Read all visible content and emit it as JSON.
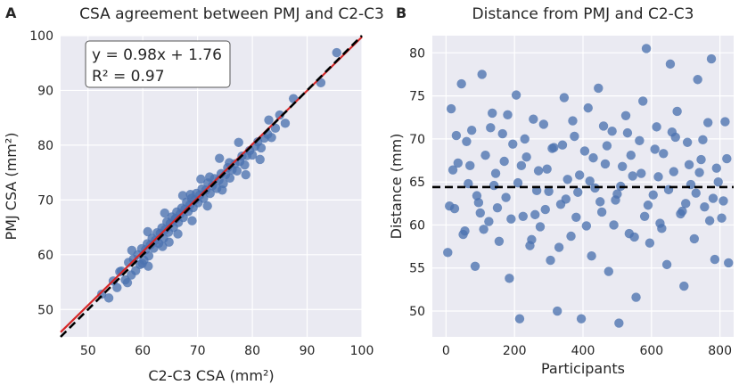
{
  "colors": {
    "plot_bg": "#EAEAF2",
    "grid": "#FFFFFF",
    "points": "#4C72B0",
    "fit_line": "#D62728",
    "identity_line": "#000000",
    "annotation_text": "#C8102E"
  },
  "chart_data": [
    {
      "panel_label": "A",
      "type": "scatter",
      "title": "CSA agreement between PMJ and C2-C3",
      "xlabel": "C2-C3 CSA (mm²)",
      "ylabel": "PMJ CSA (mm²)",
      "xlim": [
        45,
        100
      ],
      "ylim": [
        45,
        100
      ],
      "xticks": [
        50,
        60,
        70,
        80,
        90,
        100
      ],
      "yticks": [
        50,
        60,
        70,
        80,
        90,
        100
      ],
      "grid": true,
      "fit": {
        "slope": 0.98,
        "intercept": 1.76,
        "label": "y = 0.98x + 1.76"
      },
      "r2_label": "R² = 0.97",
      "identity_line": {
        "style": "dashed",
        "slope": 1,
        "intercept": 0
      },
      "series": [
        {
          "name": "participants",
          "points": [
            [
              52.5,
              52.8
            ],
            [
              53.8,
              52.1
            ],
            [
              54.6,
              55.2
            ],
            [
              55.3,
              54.0
            ],
            [
              56.1,
              57.0
            ],
            [
              56.8,
              55.4
            ],
            [
              57.4,
              58.6
            ],
            [
              57.9,
              56.3
            ],
            [
              58.3,
              59.2
            ],
            [
              58.7,
              57.1
            ],
            [
              59.1,
              60.0
            ],
            [
              59.5,
              58.2
            ],
            [
              59.8,
              61.1
            ],
            [
              60.2,
              59.0
            ],
            [
              60.5,
              60.9
            ],
            [
              60.8,
              62.0
            ],
            [
              61.1,
              59.8
            ],
            [
              61.4,
              61.8
            ],
            [
              61.7,
              63.0
            ],
            [
              62.0,
              61.2
            ],
            [
              62.3,
              62.6
            ],
            [
              62.6,
              64.0
            ],
            [
              62.9,
              62.1
            ],
            [
              63.2,
              63.9
            ],
            [
              63.5,
              64.9
            ],
            [
              63.8,
              63.0
            ],
            [
              64.1,
              64.6
            ],
            [
              64.4,
              66.0
            ],
            [
              64.7,
              64.1
            ],
            [
              65.0,
              65.7
            ],
            [
              65.3,
              66.9
            ],
            [
              65.6,
              65.0
            ],
            [
              65.9,
              66.5
            ],
            [
              66.2,
              67.8
            ],
            [
              66.5,
              65.9
            ],
            [
              66.8,
              67.4
            ],
            [
              67.1,
              68.5
            ],
            [
              67.4,
              66.8
            ],
            [
              67.7,
              68.3
            ],
            [
              68.0,
              69.6
            ],
            [
              68.3,
              67.9
            ],
            [
              68.6,
              69.1
            ],
            [
              68.9,
              70.3
            ],
            [
              69.2,
              68.6
            ],
            [
              69.5,
              70.0
            ],
            [
              69.8,
              71.2
            ],
            [
              70.1,
              69.5
            ],
            [
              70.4,
              70.9
            ],
            [
              70.8,
              72.0
            ],
            [
              71.1,
              70.3
            ],
            [
              71.5,
              71.8
            ],
            [
              71.9,
              73.1
            ],
            [
              72.3,
              71.2
            ],
            [
              72.7,
              72.6
            ],
            [
              73.1,
              73.9
            ],
            [
              73.5,
              72.1
            ],
            [
              73.9,
              73.6
            ],
            [
              74.3,
              74.8
            ],
            [
              74.7,
              73.0
            ],
            [
              75.1,
              74.6
            ],
            [
              75.5,
              75.9
            ],
            [
              75.9,
              74.0
            ],
            [
              76.3,
              75.5
            ],
            [
              76.8,
              76.6
            ],
            [
              77.2,
              75.3
            ],
            [
              77.7,
              77.0
            ],
            [
              78.1,
              78.0
            ],
            [
              78.6,
              76.4
            ],
            [
              79.0,
              78.1
            ],
            [
              79.5,
              79.0
            ],
            [
              80.0,
              78.2
            ],
            [
              80.5,
              79.8
            ],
            [
              81.0,
              80.6
            ],
            [
              81.6,
              79.5
            ],
            [
              82.2,
              81.3
            ],
            [
              82.8,
              82.0
            ],
            [
              83.5,
              81.4
            ],
            [
              84.2,
              83.1
            ],
            [
              85.0,
              85.5
            ],
            [
              86.0,
              84.0
            ],
            [
              87.5,
              88.5
            ],
            [
              92.5,
              91.4
            ],
            [
              95.4,
              96.9
            ],
            [
              57.2,
              54.9
            ],
            [
              61.0,
              57.9
            ],
            [
              63.6,
              61.5
            ],
            [
              66.4,
              63.8
            ],
            [
              69.0,
              66.2
            ],
            [
              71.8,
              68.9
            ],
            [
              74.5,
              71.8
            ],
            [
              78.8,
              74.6
            ],
            [
              81.4,
              77.4
            ],
            [
              58.0,
              60.8
            ],
            [
              60.9,
              64.2
            ],
            [
              64.0,
              67.6
            ],
            [
              67.3,
              70.8
            ],
            [
              70.6,
              73.8
            ],
            [
              74.0,
              77.6
            ],
            [
              77.5,
              80.5
            ],
            [
              64.8,
              62.3
            ],
            [
              68.7,
              71.0
            ],
            [
              72.2,
              74.2
            ],
            [
              55.8,
              56.9
            ],
            [
              59.9,
              58.4
            ],
            [
              66.0,
              66.6
            ],
            [
              75.8,
              76.8
            ],
            [
              83.0,
              84.6
            ]
          ]
        }
      ]
    },
    {
      "panel_label": "B",
      "type": "scatter",
      "title": "Distance from PMJ and C2-C3",
      "xlabel": "Participants",
      "ylabel": "Distance (mm)",
      "xlim": [
        -40,
        840
      ],
      "ylim": [
        47,
        82
      ],
      "xticks": [
        0,
        200,
        400,
        600,
        800
      ],
      "yticks": [
        50,
        55,
        60,
        65,
        70,
        75,
        80
      ],
      "grid": true,
      "mean_line": {
        "value": 64.4,
        "style": "dashed"
      },
      "series": [
        {
          "name": "participants",
          "points": [
            [
              5,
              56.8
            ],
            [
              15,
              73.5
            ],
            [
              25,
              61.9
            ],
            [
              35,
              67.2
            ],
            [
              45,
              76.4
            ],
            [
              55,
              59.3
            ],
            [
              65,
              64.8
            ],
            [
              75,
              71.0
            ],
            [
              85,
              55.2
            ],
            [
              95,
              62.6
            ],
            [
              105,
              77.5
            ],
            [
              115,
              68.1
            ],
            [
              125,
              60.4
            ],
            [
              135,
              73.0
            ],
            [
              145,
              66.0
            ],
            [
              155,
              58.1
            ],
            [
              165,
              70.6
            ],
            [
              175,
              63.2
            ],
            [
              185,
              53.8
            ],
            [
              195,
              69.4
            ],
            [
              205,
              75.1
            ],
            [
              215,
              49.1
            ],
            [
              225,
              61.0
            ],
            [
              235,
              67.9
            ],
            [
              245,
              57.6
            ],
            [
              255,
              72.3
            ],
            [
              265,
              64.0
            ],
            [
              275,
              59.8
            ],
            [
              285,
              71.7
            ],
            [
              295,
              66.5
            ],
            [
              305,
              55.9
            ],
            [
              315,
              69.0
            ],
            [
              325,
              50.0
            ],
            [
              335,
              62.4
            ],
            [
              345,
              74.8
            ],
            [
              355,
              65.3
            ],
            [
              365,
              58.7
            ],
            [
              375,
              70.3
            ],
            [
              385,
              63.8
            ],
            [
              395,
              49.1
            ],
            [
              405,
              68.6
            ],
            [
              415,
              73.6
            ],
            [
              425,
              56.4
            ],
            [
              435,
              64.3
            ],
            [
              445,
              75.9
            ],
            [
              455,
              61.5
            ],
            [
              465,
              67.1
            ],
            [
              475,
              54.6
            ],
            [
              485,
              70.9
            ],
            [
              495,
              62.9
            ],
            [
              505,
              48.6
            ],
            [
              515,
              66.8
            ],
            [
              525,
              72.7
            ],
            [
              535,
              59.0
            ],
            [
              545,
              65.7
            ],
            [
              555,
              51.6
            ],
            [
              565,
              69.8
            ],
            [
              575,
              74.4
            ],
            [
              585,
              80.5
            ],
            [
              595,
              57.9
            ],
            [
              605,
              63.5
            ],
            [
              615,
              71.4
            ],
            [
              625,
              60.2
            ],
            [
              635,
              68.3
            ],
            [
              645,
              55.4
            ],
            [
              655,
              78.7
            ],
            [
              665,
              66.2
            ],
            [
              675,
              73.2
            ],
            [
              685,
              61.3
            ],
            [
              695,
              52.9
            ],
            [
              705,
              69.6
            ],
            [
              715,
              64.7
            ],
            [
              725,
              58.4
            ],
            [
              735,
              76.9
            ],
            [
              745,
              67.6
            ],
            [
              755,
              62.1
            ],
            [
              765,
              71.9
            ],
            [
              775,
              79.3
            ],
            [
              785,
              56.0
            ],
            [
              795,
              65.0
            ],
            [
              805,
              60.8
            ],
            [
              815,
              72.0
            ],
            [
              825,
              55.6
            ],
            [
              10,
              62.2
            ],
            [
              30,
              70.4
            ],
            [
              50,
              58.9
            ],
            [
              70,
              66.9
            ],
            [
              90,
              63.4
            ],
            [
              110,
              59.5
            ],
            [
              130,
              71.3
            ],
            [
              150,
              62.0
            ],
            [
              170,
              67.4
            ],
            [
              190,
              60.7
            ],
            [
              210,
              64.9
            ],
            [
              230,
              70.0
            ],
            [
              250,
              58.3
            ],
            [
              270,
              66.3
            ],
            [
              290,
              61.8
            ],
            [
              310,
              68.9
            ],
            [
              330,
              57.4
            ],
            [
              350,
              63.0
            ],
            [
              370,
              72.1
            ],
            [
              390,
              65.8
            ],
            [
              410,
              59.9
            ],
            [
              430,
              67.8
            ],
            [
              450,
              62.7
            ],
            [
              470,
              69.2
            ],
            [
              490,
              60.0
            ],
            [
              510,
              64.5
            ],
            [
              530,
              70.7
            ],
            [
              550,
              58.6
            ],
            [
              570,
              66.0
            ],
            [
              590,
              62.3
            ],
            [
              610,
              68.8
            ],
            [
              630,
              59.6
            ],
            [
              650,
              64.1
            ],
            [
              670,
              70.2
            ],
            [
              690,
              61.6
            ],
            [
              710,
              67.0
            ],
            [
              730,
              63.7
            ],
            [
              750,
              69.9
            ],
            [
              770,
              60.5
            ],
            [
              790,
              66.6
            ],
            [
              810,
              62.8
            ],
            [
              20,
              66.4
            ],
            [
              60,
              69.7
            ],
            [
              100,
              61.4
            ],
            [
              140,
              64.6
            ],
            [
              180,
              72.8
            ],
            [
              220,
              66.9
            ],
            [
              260,
              61.2
            ],
            [
              300,
              63.9
            ],
            [
              340,
              69.3
            ],
            [
              380,
              60.9
            ],
            [
              420,
              65.1
            ],
            [
              460,
              71.5
            ],
            [
              500,
              63.6
            ],
            [
              540,
              68.1
            ],
            [
              580,
              61.0
            ],
            [
              620,
              65.6
            ],
            [
              660,
              70.8
            ],
            [
              700,
              62.5
            ],
            [
              740,
              66.1
            ],
            [
              780,
              63.1
            ],
            [
              820,
              67.7
            ]
          ]
        }
      ]
    }
  ]
}
